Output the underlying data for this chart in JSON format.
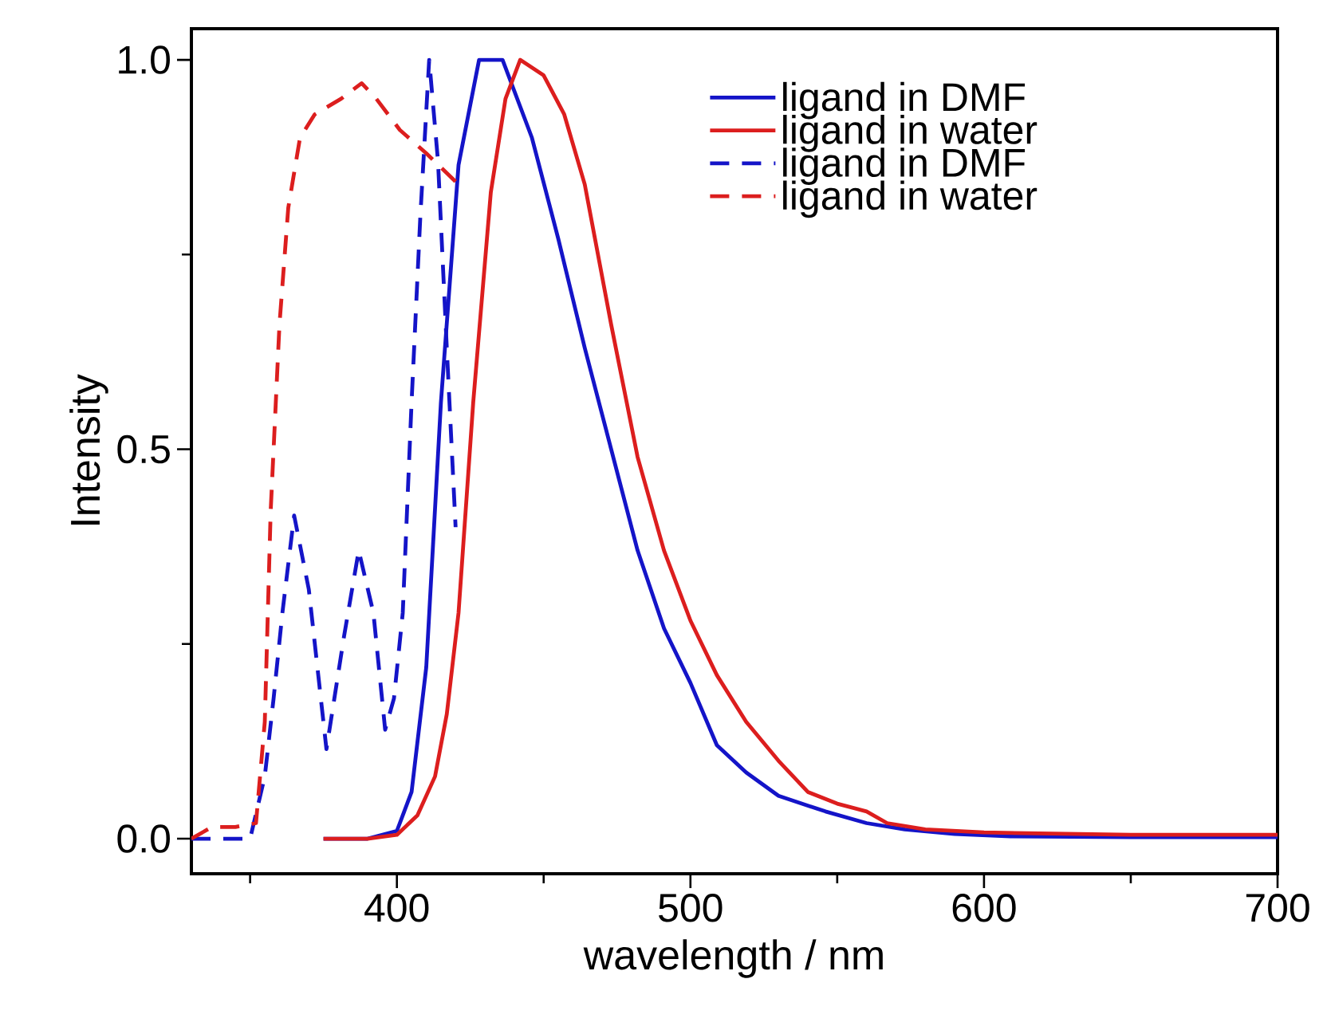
{
  "chart_data": {
    "type": "line",
    "xlabel": "wavelength / nm",
    "ylabel": "Intensity",
    "xlim": [
      330,
      700
    ],
    "ylim": [
      -0.045,
      1.04
    ],
    "xticks": [
      {
        "value": 350,
        "label": null
      },
      400,
      {
        "value": 450,
        "label": null
      },
      500,
      {
        "value": 550,
        "label": null
      },
      600,
      {
        "value": 650,
        "label": null
      },
      700
    ],
    "yticks": [
      {
        "value": 0,
        "label": "0.0"
      },
      {
        "value": 0.25,
        "label": null
      },
      {
        "value": 0.5,
        "label": "0.5"
      },
      {
        "value": 0.75,
        "label": null
      },
      {
        "value": 1.0,
        "label": "1.0"
      }
    ],
    "grid": false,
    "legend": "top right",
    "marker": "none",
    "series": [
      {
        "name": "ligand in DMF",
        "color": "#1414c8",
        "line_style": "solid",
        "x": [
          375,
          390,
          400,
          405,
          410,
          415,
          421,
          428,
          436,
          446,
          455,
          464,
          473,
          482,
          491,
          500,
          509,
          519,
          530,
          546,
          560,
          573,
          590,
          609,
          650,
          700
        ],
        "values": [
          0.0,
          0.0,
          0.01,
          0.06,
          0.22,
          0.56,
          0.865,
          1.0,
          1.0,
          0.9,
          0.77,
          0.63,
          0.5,
          0.37,
          0.27,
          0.2,
          0.12,
          0.085,
          0.055,
          0.035,
          0.02,
          0.012,
          0.006,
          0.003,
          0.002,
          0.002
        ]
      },
      {
        "name": "ligand in water",
        "color": "#dc1e1e",
        "line_style": "solid",
        "x": [
          375,
          390,
          400,
          407,
          413,
          417,
          421,
          426,
          432,
          437,
          442,
          450,
          457,
          464,
          473,
          482,
          491,
          500,
          509,
          519,
          530,
          540,
          550,
          560,
          567,
          580,
          600,
          650,
          700
        ],
        "values": [
          0.0,
          0.0,
          0.005,
          0.03,
          0.08,
          0.16,
          0.29,
          0.56,
          0.83,
          0.95,
          1.0,
          0.98,
          0.93,
          0.84,
          0.66,
          0.49,
          0.37,
          0.28,
          0.21,
          0.15,
          0.1,
          0.06,
          0.045,
          0.035,
          0.02,
          0.012,
          0.008,
          0.005,
          0.005
        ]
      },
      {
        "name": "ligand in DMF",
        "color": "#1414c8",
        "line_style": "dashed",
        "x": [
          330,
          340,
          350,
          355,
          358,
          361,
          365,
          370,
          376,
          382,
          387,
          392,
          396,
          399,
          402,
          405,
          408,
          411,
          414,
          417,
          420
        ],
        "values": [
          0.0,
          0.0,
          0.0,
          0.08,
          0.18,
          0.29,
          0.415,
          0.32,
          0.115,
          0.26,
          0.37,
          0.29,
          0.14,
          0.18,
          0.29,
          0.56,
          0.8,
          1.0,
          0.87,
          0.63,
          0.4
        ]
      },
      {
        "name": "ligand in water",
        "color": "#dc1e1e",
        "line_style": "dashed",
        "x": [
          330,
          337,
          345,
          352,
          355,
          357,
          360,
          363,
          367,
          372,
          381,
          388,
          393,
          401,
          410,
          421
        ],
        "values": [
          0.0,
          0.015,
          0.015,
          0.02,
          0.15,
          0.42,
          0.66,
          0.81,
          0.9,
          0.93,
          0.95,
          0.97,
          0.95,
          0.91,
          0.88,
          0.84
        ]
      }
    ]
  }
}
